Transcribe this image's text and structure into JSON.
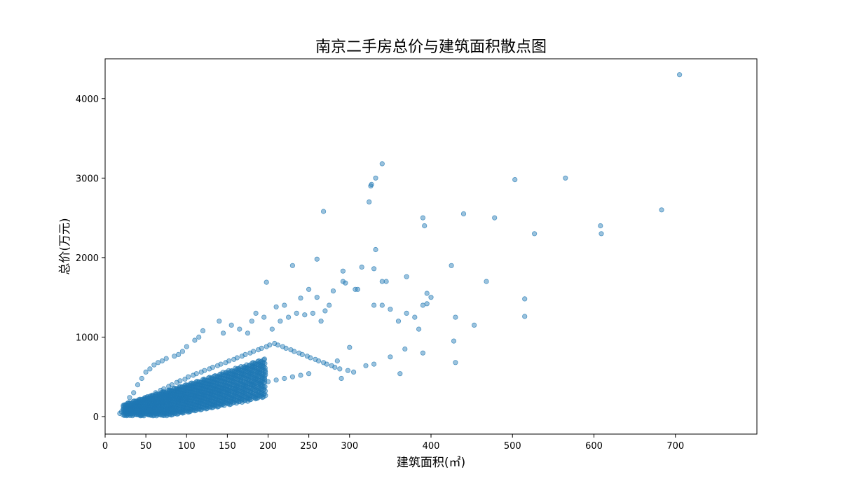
{
  "chart_data": {
    "type": "scatter",
    "title": "南京二手房总价与建筑面积散点图",
    "xlabel": "建筑面积(㎡)",
    "ylabel": "总价(万元)",
    "xlim": [
      0,
      800
    ],
    "ylim": [
      -220,
      4500
    ],
    "xticks": [
      0,
      50,
      100,
      150,
      200,
      250,
      300,
      400,
      500,
      600,
      700
    ],
    "yticks": [
      0,
      1000,
      2000,
      3000,
      4000
    ],
    "grid": false,
    "legend": "none",
    "color": "#1f77b4",
    "point_alpha": 0.45,
    "points": [
      [
        705,
        4300
      ],
      [
        340,
        3180
      ],
      [
        332,
        3000
      ],
      [
        326,
        2900
      ],
      [
        327,
        2920
      ],
      [
        324,
        2700
      ],
      [
        268,
        2580
      ],
      [
        565,
        3000
      ],
      [
        503,
        2980
      ],
      [
        683,
        2600
      ],
      [
        608,
        2400
      ],
      [
        609,
        2300
      ],
      [
        527,
        2300
      ],
      [
        478,
        2500
      ],
      [
        440,
        2550
      ],
      [
        390,
        2500
      ],
      [
        392,
        2400
      ],
      [
        332,
        2100
      ],
      [
        260,
        1980
      ],
      [
        230,
        1900
      ],
      [
        425,
        1900
      ],
      [
        292,
        1830
      ],
      [
        315,
        1880
      ],
      [
        330,
        1860
      ],
      [
        198,
        1690
      ],
      [
        340,
        1700
      ],
      [
        345,
        1700
      ],
      [
        370,
        1760
      ],
      [
        468,
        1700
      ],
      [
        307,
        1600
      ],
      [
        310,
        1600
      ],
      [
        292,
        1700
      ],
      [
        295,
        1680
      ],
      [
        280,
        1580
      ],
      [
        260,
        1500
      ],
      [
        250,
        1600
      ],
      [
        240,
        1490
      ],
      [
        220,
        1400
      ],
      [
        210,
        1380
      ],
      [
        395,
        1550
      ],
      [
        400,
        1500
      ],
      [
        515,
        1480
      ],
      [
        330,
        1400
      ],
      [
        340,
        1400
      ],
      [
        350,
        1350
      ],
      [
        360,
        1200
      ],
      [
        370,
        1300
      ],
      [
        380,
        1250
      ],
      [
        395,
        1420
      ],
      [
        390,
        1400
      ],
      [
        430,
        1250
      ],
      [
        453,
        1150
      ],
      [
        515,
        1260
      ],
      [
        428,
        950
      ],
      [
        430,
        680
      ],
      [
        390,
        800
      ],
      [
        385,
        1100
      ],
      [
        368,
        850
      ],
      [
        362,
        540
      ],
      [
        350,
        750
      ],
      [
        330,
        660
      ],
      [
        320,
        640
      ],
      [
        300,
        870
      ],
      [
        290,
        480
      ],
      [
        285,
        700
      ],
      [
        275,
        1400
      ],
      [
        270,
        1330
      ],
      [
        265,
        1200
      ],
      [
        255,
        1300
      ],
      [
        245,
        1280
      ],
      [
        235,
        1300
      ],
      [
        225,
        1250
      ],
      [
        215,
        1200
      ],
      [
        205,
        1100
      ],
      [
        195,
        1250
      ],
      [
        185,
        1300
      ],
      [
        180,
        1200
      ],
      [
        175,
        1050
      ],
      [
        165,
        1100
      ],
      [
        155,
        1150
      ],
      [
        145,
        1050
      ],
      [
        140,
        1200
      ],
      [
        120,
        1080
      ],
      [
        115,
        1000
      ],
      [
        110,
        960
      ],
      [
        100,
        880
      ],
      [
        95,
        820
      ],
      [
        90,
        780
      ],
      [
        85,
        760
      ],
      [
        75,
        730
      ],
      [
        70,
        700
      ],
      [
        65,
        680
      ],
      [
        60,
        650
      ],
      [
        55,
        600
      ],
      [
        50,
        560
      ],
      [
        45,
        480
      ],
      [
        40,
        400
      ],
      [
        35,
        300
      ],
      [
        30,
        240
      ],
      [
        25,
        150
      ],
      [
        20,
        60
      ],
      [
        18,
        40
      ],
      [
        22,
        90
      ],
      [
        28,
        120
      ],
      [
        33,
        140
      ],
      [
        38,
        170
      ],
      [
        42,
        200
      ],
      [
        48,
        220
      ],
      [
        52,
        250
      ],
      [
        58,
        270
      ],
      [
        62,
        300
      ],
      [
        68,
        330
      ],
      [
        72,
        350
      ],
      [
        78,
        380
      ],
      [
        82,
        400
      ],
      [
        88,
        430
      ],
      [
        92,
        450
      ],
      [
        98,
        470
      ],
      [
        102,
        500
      ],
      [
        108,
        520
      ],
      [
        112,
        540
      ],
      [
        118,
        560
      ],
      [
        122,
        580
      ],
      [
        128,
        600
      ],
      [
        132,
        620
      ],
      [
        138,
        640
      ],
      [
        142,
        660
      ],
      [
        148,
        680
      ],
      [
        152,
        700
      ],
      [
        158,
        720
      ],
      [
        162,
        740
      ],
      [
        168,
        760
      ],
      [
        172,
        780
      ],
      [
        178,
        800
      ],
      [
        182,
        820
      ],
      [
        188,
        840
      ],
      [
        192,
        860
      ],
      [
        198,
        880
      ],
      [
        202,
        900
      ],
      [
        208,
        920
      ],
      [
        212,
        900
      ],
      [
        218,
        880
      ],
      [
        222,
        860
      ],
      [
        228,
        840
      ],
      [
        232,
        820
      ],
      [
        238,
        800
      ],
      [
        242,
        780
      ],
      [
        248,
        760
      ],
      [
        252,
        740
      ],
      [
        258,
        720
      ],
      [
        262,
        700
      ],
      [
        268,
        680
      ],
      [
        272,
        660
      ],
      [
        278,
        640
      ],
      [
        282,
        620
      ],
      [
        288,
        600
      ],
      [
        298,
        580
      ],
      [
        305,
        560
      ],
      [
        60,
        150
      ],
      [
        70,
        180
      ],
      [
        80,
        200
      ],
      [
        90,
        220
      ],
      [
        100,
        240
      ],
      [
        110,
        260
      ],
      [
        120,
        280
      ],
      [
        130,
        300
      ],
      [
        140,
        320
      ],
      [
        150,
        340
      ],
      [
        160,
        360
      ],
      [
        170,
        380
      ],
      [
        180,
        400
      ],
      [
        190,
        420
      ],
      [
        200,
        440
      ],
      [
        210,
        460
      ],
      [
        220,
        480
      ],
      [
        230,
        500
      ],
      [
        240,
        520
      ],
      [
        250,
        540
      ]
    ]
  }
}
